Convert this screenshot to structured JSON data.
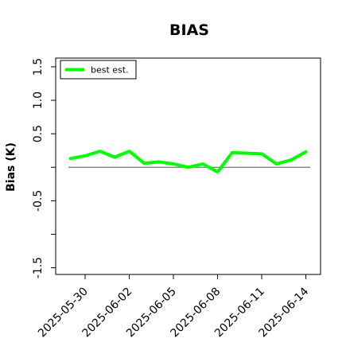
{
  "chart_data": {
    "type": "line",
    "title": "BIAS",
    "ylabel": "Bias (K)",
    "xlabel": "",
    "ylim": [
      -1.6,
      1.63
    ],
    "xlim": [
      "2025-05-28",
      "2025-06-15"
    ],
    "yticks": [
      -1.5,
      -1.0,
      -0.5,
      0.0,
      0.5,
      1.0,
      1.5
    ],
    "ytick_labels": [
      "-1.5",
      "",
      "-0.5",
      "",
      "0.5",
      "1.0",
      "1.5"
    ],
    "xticks": [
      "2025-05-30",
      "2025-06-02",
      "2025-06-05",
      "2025-06-08",
      "2025-06-11",
      "2025-06-14"
    ],
    "reference_line": 0.0,
    "grid": false,
    "legend_position": "top-left",
    "series": [
      {
        "name": "best est.",
        "color": "#00ff00",
        "x": [
          "2025-05-29",
          "2025-05-30",
          "2025-05-31",
          "2025-06-01",
          "2025-06-02",
          "2025-06-03",
          "2025-06-04",
          "2025-06-05",
          "2025-06-06",
          "2025-06-07",
          "2025-06-08",
          "2025-06-09",
          "2025-06-10",
          "2025-06-11",
          "2025-06-12",
          "2025-06-13",
          "2025-06-14"
        ],
        "values": [
          0.13,
          0.17,
          0.24,
          0.15,
          0.24,
          0.06,
          0.08,
          0.05,
          0.0,
          0.05,
          -0.07,
          0.22,
          0.21,
          0.2,
          0.05,
          0.11,
          0.23
        ]
      }
    ]
  }
}
